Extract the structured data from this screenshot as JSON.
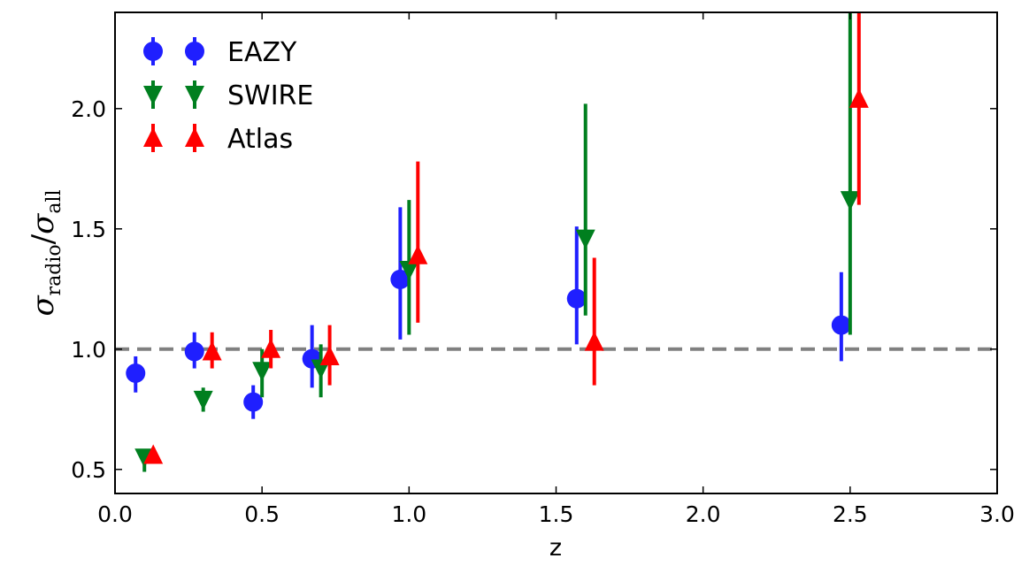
{
  "chart_data": {
    "type": "scatter",
    "xlabel": "z",
    "ylabel": {
      "numerator": "σ",
      "numerator_sub": "radio",
      "slash": "/",
      "denominator": "σ",
      "denominator_sub": "all"
    },
    "xlim": [
      0.0,
      3.0
    ],
    "ylim": [
      0.4,
      2.4
    ],
    "x_ticks": [
      0.0,
      0.5,
      1.0,
      1.5,
      2.0,
      2.5,
      3.0
    ],
    "x_tick_labels": [
      "0.0",
      "0.5",
      "1.0",
      "1.5",
      "2.0",
      "2.5",
      "3.0"
    ],
    "y_ticks": [
      0.5,
      1.0,
      1.5,
      2.0
    ],
    "y_tick_labels": [
      "0.5",
      "1.0",
      "1.5",
      "2.0"
    ],
    "grid": false,
    "legend_position": "top-left",
    "reference_line": {
      "y": 1.0,
      "style": "dashed",
      "color": "#808080"
    },
    "series": [
      {
        "name": "EAZY",
        "marker": "circle",
        "color": "#1f1fff",
        "points": [
          {
            "x": 0.07,
            "y": 0.9,
            "ylo": 0.82,
            "yhi": 0.97
          },
          {
            "x": 0.27,
            "y": 0.99,
            "ylo": 0.92,
            "yhi": 1.07
          },
          {
            "x": 0.47,
            "y": 0.78,
            "ylo": 0.71,
            "yhi": 0.85
          },
          {
            "x": 0.67,
            "y": 0.96,
            "ylo": 0.84,
            "yhi": 1.1
          },
          {
            "x": 0.97,
            "y": 1.29,
            "ylo": 1.04,
            "yhi": 1.59
          },
          {
            "x": 1.57,
            "y": 1.21,
            "ylo": 1.02,
            "yhi": 1.51
          },
          {
            "x": 2.47,
            "y": 1.1,
            "ylo": 0.95,
            "yhi": 1.32
          }
        ]
      },
      {
        "name": "SWIRE",
        "marker": "triangle-down",
        "color": "#007f1f",
        "points": [
          {
            "x": 0.1,
            "y": 0.55,
            "ylo": 0.49,
            "yhi": 0.58
          },
          {
            "x": 0.3,
            "y": 0.79,
            "ylo": 0.74,
            "yhi": 0.84
          },
          {
            "x": 0.5,
            "y": 0.91,
            "ylo": 0.8,
            "yhi": 1.0
          },
          {
            "x": 0.7,
            "y": 0.92,
            "ylo": 0.8,
            "yhi": 1.02
          },
          {
            "x": 1.0,
            "y": 1.33,
            "ylo": 1.06,
            "yhi": 1.62
          },
          {
            "x": 1.6,
            "y": 1.46,
            "ylo": 1.14,
            "yhi": 2.02
          },
          {
            "x": 2.5,
            "y": 1.62,
            "ylo": 1.06,
            "yhi": 2.4
          }
        ]
      },
      {
        "name": "Atlas",
        "marker": "triangle-up",
        "color": "#ff0000",
        "points": [
          {
            "x": 0.13,
            "y": 0.56,
            "ylo": 0.53,
            "yhi": 0.59
          },
          {
            "x": 0.33,
            "y": 0.99,
            "ylo": 0.92,
            "yhi": 1.07
          },
          {
            "x": 0.53,
            "y": 1.0,
            "ylo": 0.92,
            "yhi": 1.08
          },
          {
            "x": 0.73,
            "y": 0.97,
            "ylo": 0.85,
            "yhi": 1.1
          },
          {
            "x": 1.03,
            "y": 1.39,
            "ylo": 1.11,
            "yhi": 1.78
          },
          {
            "x": 1.63,
            "y": 1.03,
            "ylo": 0.85,
            "yhi": 1.38
          },
          {
            "x": 2.53,
            "y": 2.04,
            "ylo": 1.6,
            "yhi": 2.4
          }
        ]
      }
    ]
  }
}
